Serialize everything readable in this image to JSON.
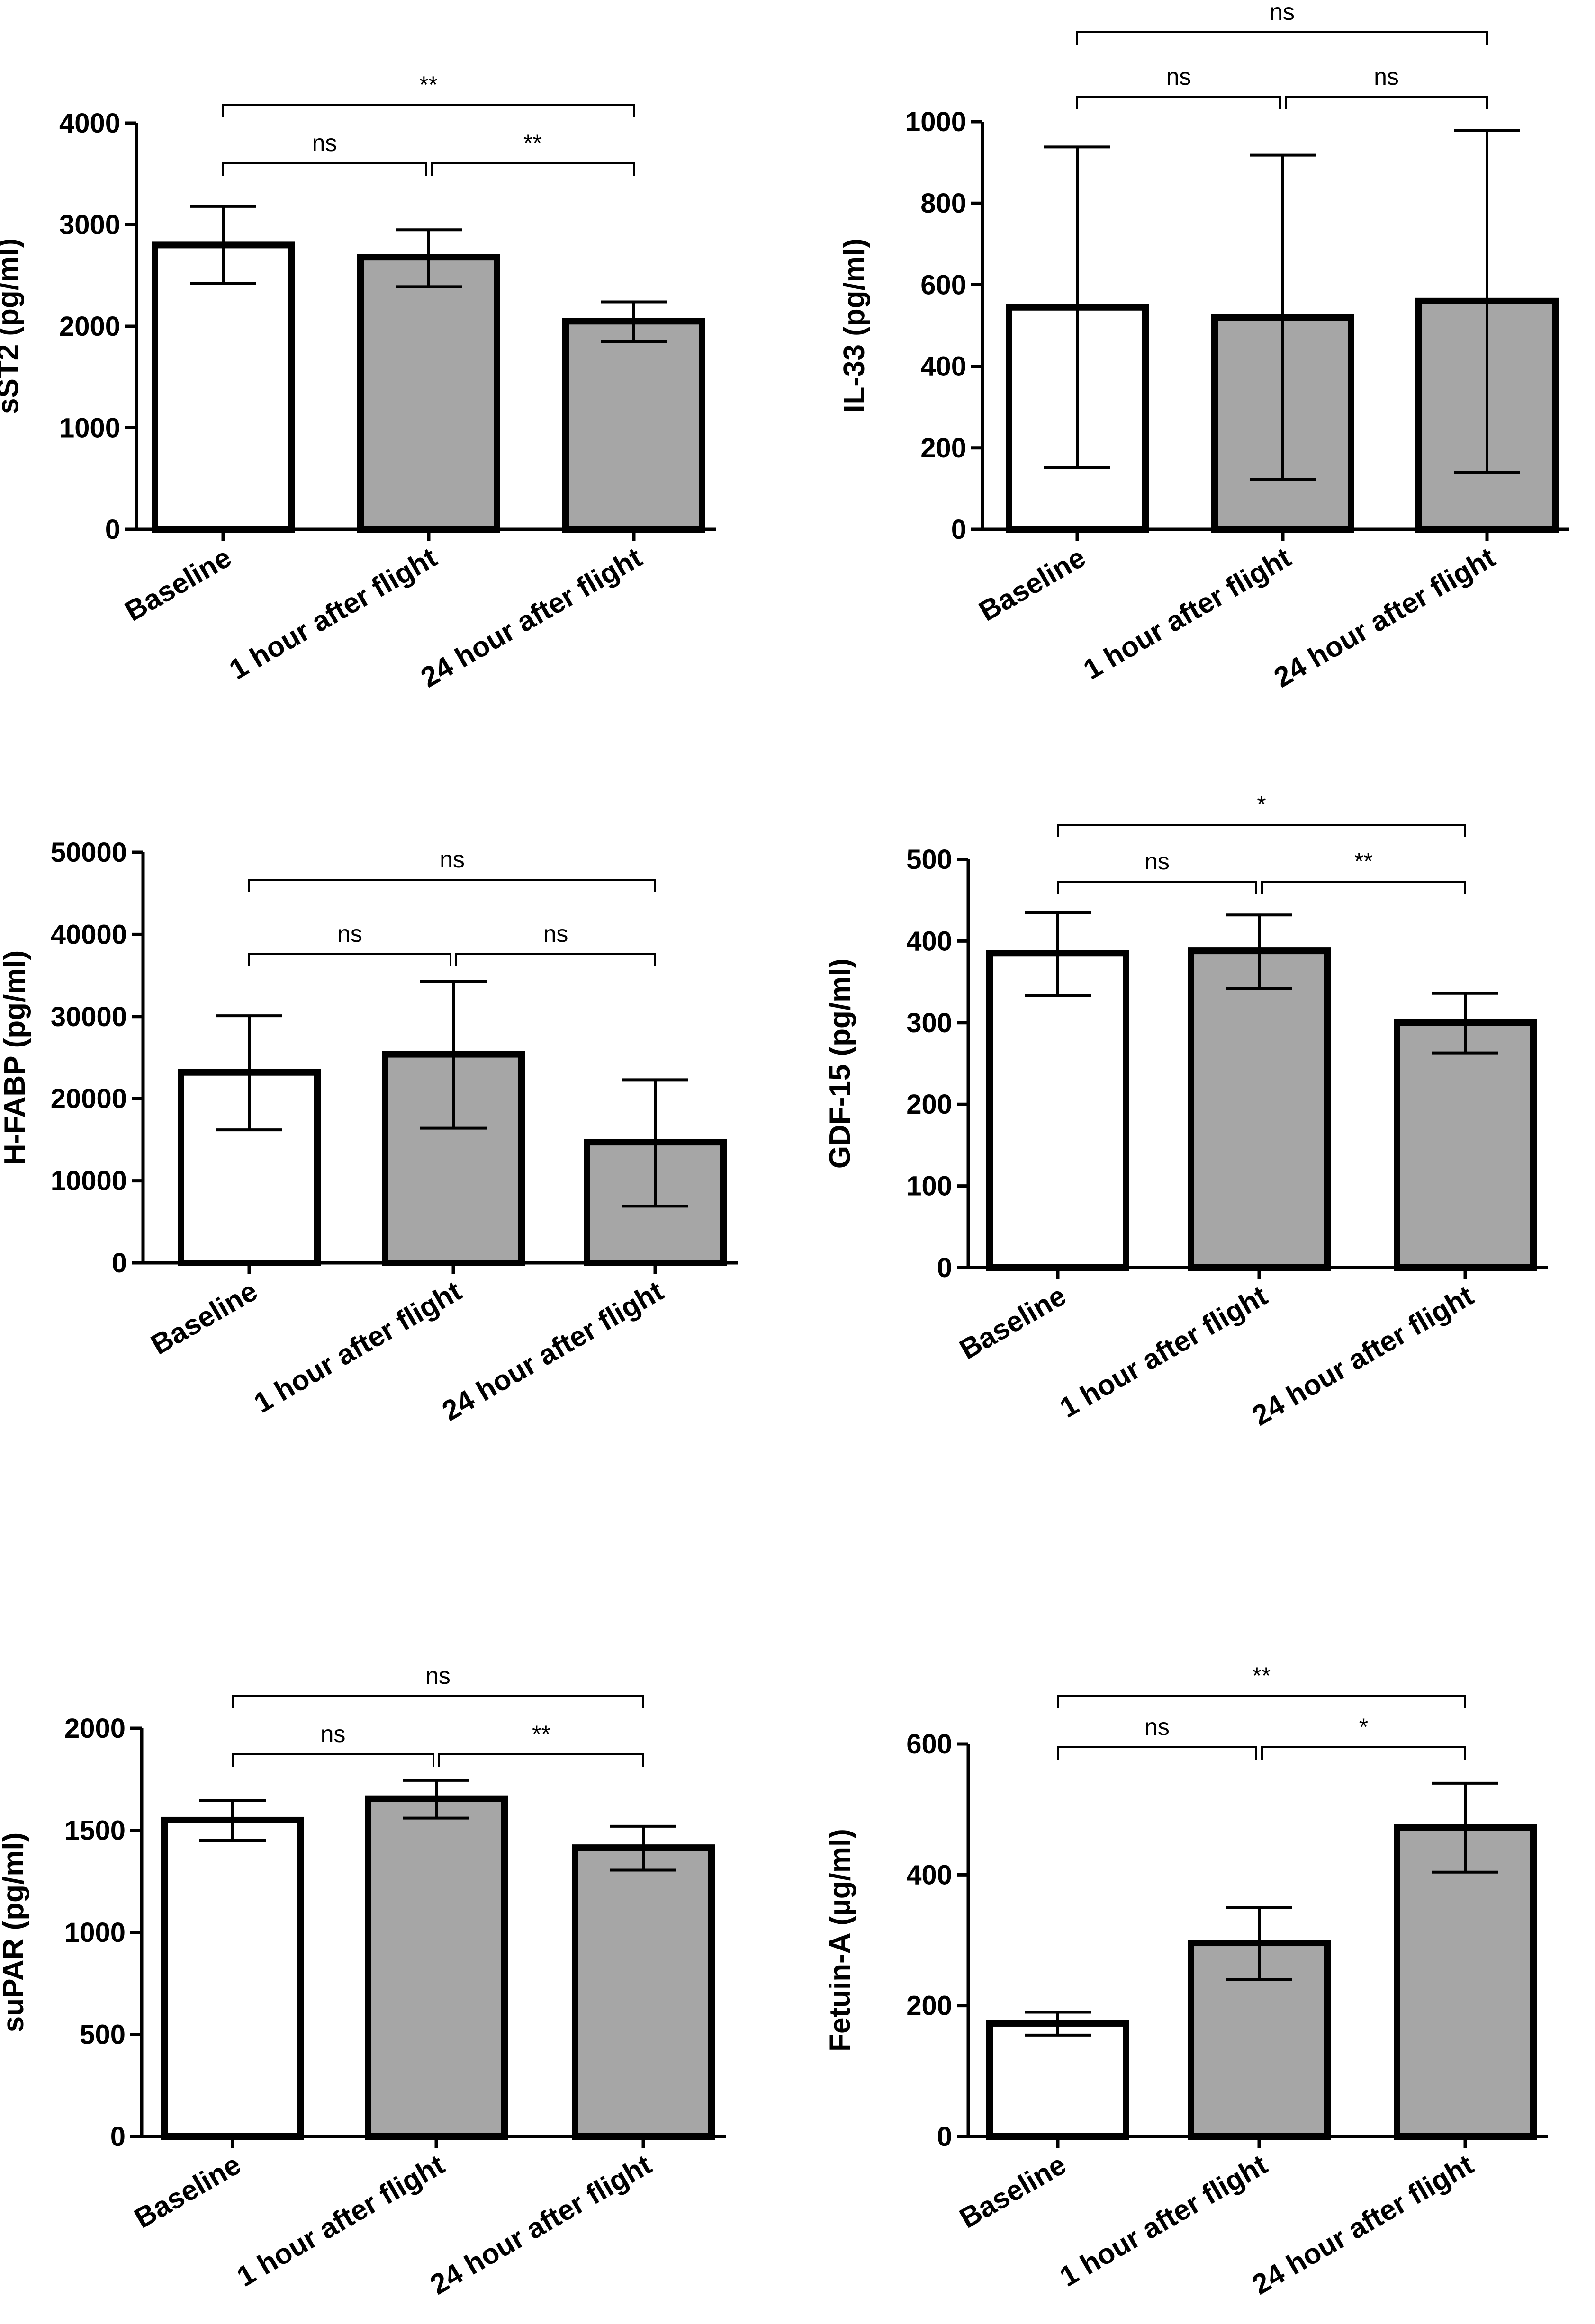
{
  "chart_data": [
    {
      "type": "bar",
      "ylabel": "sST2 (pg/ml)",
      "categories": [
        "Baseline",
        "1 hour after flight",
        "24 hour after flight"
      ],
      "values": [
        2800,
        2680,
        2050
      ],
      "error_low": [
        2420,
        2390,
        1850
      ],
      "error_high": [
        3180,
        2950,
        2240
      ],
      "bar_colors": [
        "#ffffff",
        "#a6a6a6",
        "#a6a6a6"
      ],
      "ylim": [
        0,
        4000
      ],
      "yticks": [
        "0",
        "1000",
        "2000",
        "3000",
        "4000"
      ],
      "comparisons": [
        {
          "from": 0,
          "to": 1,
          "label": "ns"
        },
        {
          "from": 1,
          "to": 2,
          "label": "**"
        },
        {
          "from": 0,
          "to": 2,
          "label": "**"
        }
      ]
    },
    {
      "type": "bar",
      "ylabel": "IL-33 (pg/ml)",
      "categories": [
        "Baseline",
        "1 hour after flight",
        "24 hour after flight"
      ],
      "values": [
        545,
        520,
        560
      ],
      "error_low": [
        152,
        122,
        140
      ],
      "error_high": [
        938,
        918,
        978
      ],
      "bar_colors": [
        "#ffffff",
        "#a6a6a6",
        "#a6a6a6"
      ],
      "ylim": [
        0,
        1000
      ],
      "yticks": [
        "0",
        "200",
        "400",
        "600",
        "800",
        "1000"
      ],
      "comparisons": [
        {
          "from": 0,
          "to": 1,
          "label": "ns"
        },
        {
          "from": 1,
          "to": 2,
          "label": "ns"
        },
        {
          "from": 0,
          "to": 2,
          "label": "ns"
        }
      ]
    },
    {
      "type": "bar",
      "ylabel": "H-FABP (pg/ml)",
      "categories": [
        "Baseline",
        "1 hour after flight",
        "24 hour after flight"
      ],
      "values": [
        23200,
        25400,
        14700
      ],
      "error_low": [
        16200,
        16400,
        6900
      ],
      "error_high": [
        30100,
        34300,
        22300
      ],
      "bar_colors": [
        "#ffffff",
        "#a6a6a6",
        "#a6a6a6"
      ],
      "ylim": [
        0,
        50000
      ],
      "yticks": [
        "0",
        "10000",
        "20000",
        "30000",
        "40000",
        "50000"
      ],
      "comparisons": [
        {
          "from": 0,
          "to": 1,
          "label": "ns"
        },
        {
          "from": 1,
          "to": 2,
          "label": "ns"
        },
        {
          "from": 0,
          "to": 2,
          "label": "ns"
        }
      ]
    },
    {
      "type": "bar",
      "ylabel": "GDF-15 (pg/ml)",
      "categories": [
        "Baseline",
        "1 hour after flight",
        "24 hour after flight"
      ],
      "values": [
        385,
        388,
        300
      ],
      "error_low": [
        333,
        342,
        263
      ],
      "error_high": [
        435,
        432,
        336
      ],
      "bar_colors": [
        "#ffffff",
        "#a6a6a6",
        "#a6a6a6"
      ],
      "ylim": [
        0,
        500
      ],
      "yticks": [
        "0",
        "100",
        "200",
        "300",
        "400",
        "500"
      ],
      "comparisons": [
        {
          "from": 0,
          "to": 1,
          "label": "ns"
        },
        {
          "from": 1,
          "to": 2,
          "label": "**"
        },
        {
          "from": 0,
          "to": 2,
          "label": "*"
        }
      ]
    },
    {
      "type": "bar",
      "ylabel": "suPAR (pg/ml)",
      "categories": [
        "Baseline",
        "1 hour after flight",
        "24 hour after flight"
      ],
      "values": [
        1550,
        1655,
        1415
      ],
      "error_low": [
        1450,
        1560,
        1305
      ],
      "error_high": [
        1645,
        1745,
        1520
      ],
      "bar_colors": [
        "#ffffff",
        "#a6a6a6",
        "#a6a6a6"
      ],
      "ylim": [
        0,
        2000
      ],
      "yticks": [
        "0",
        "500",
        "1000",
        "1500",
        "2000"
      ],
      "comparisons": [
        {
          "from": 0,
          "to": 1,
          "label": "ns"
        },
        {
          "from": 1,
          "to": 2,
          "label": "**"
        },
        {
          "from": 0,
          "to": 2,
          "label": "ns"
        }
      ]
    },
    {
      "type": "bar",
      "ylabel": "Fetuin-A (µg/ml)",
      "categories": [
        "Baseline",
        "1 hour after flight",
        "24 hour after flight"
      ],
      "values": [
        173,
        296,
        472
      ],
      "error_low": [
        155,
        240,
        404
      ],
      "error_high": [
        190,
        350,
        540
      ],
      "bar_colors": [
        "#ffffff",
        "#a6a6a6",
        "#a6a6a6"
      ],
      "ylim": [
        0,
        600
      ],
      "yticks": [
        "0",
        "200",
        "400",
        "600"
      ],
      "comparisons": [
        {
          "from": 0,
          "to": 1,
          "label": "ns"
        },
        {
          "from": 1,
          "to": 2,
          "label": "*"
        },
        {
          "from": 0,
          "to": 2,
          "label": "**"
        }
      ]
    }
  ]
}
